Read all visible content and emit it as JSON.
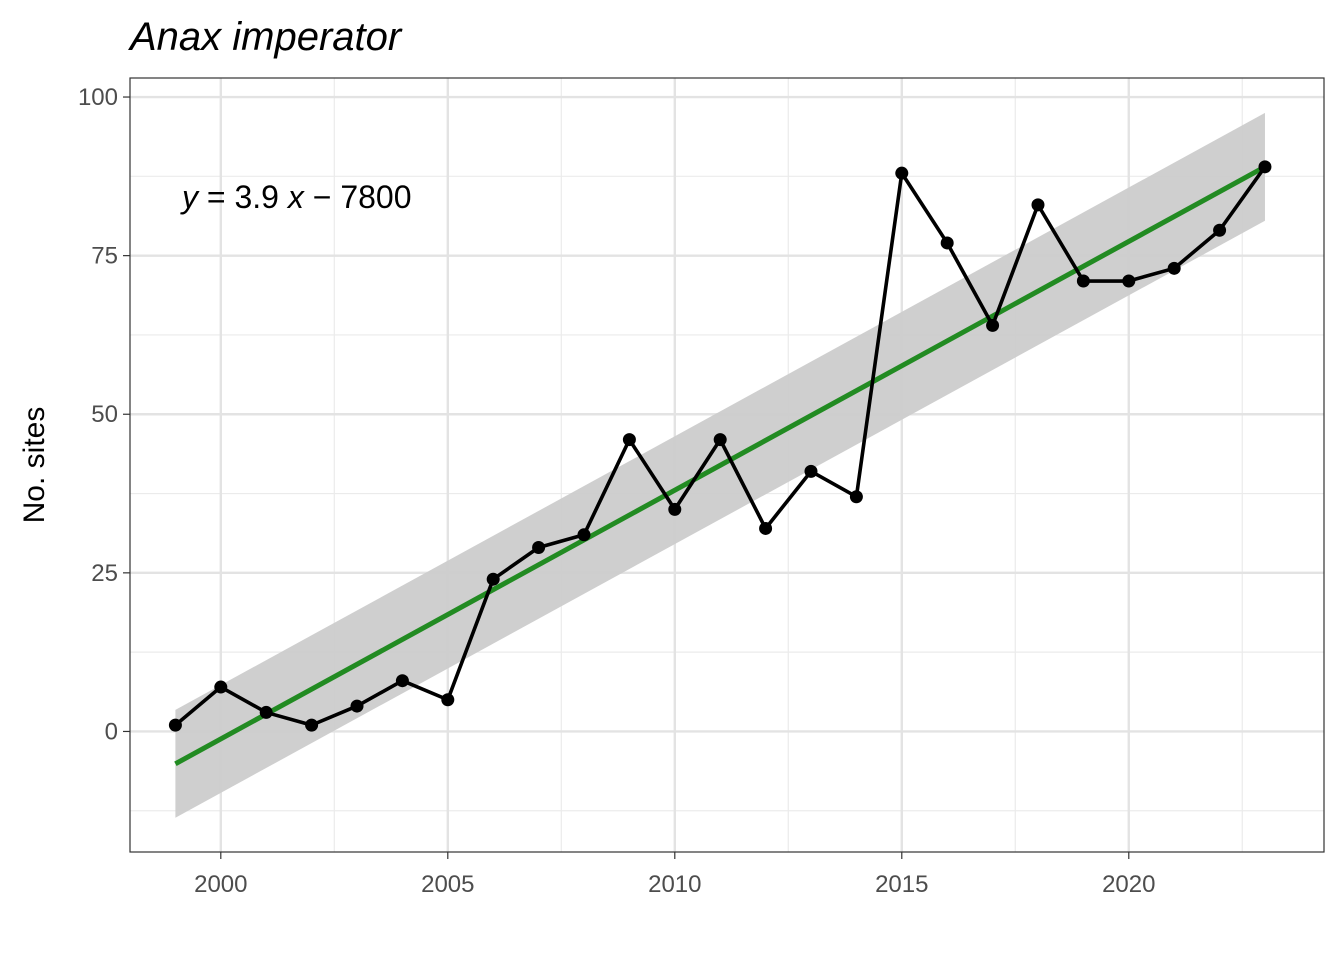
{
  "chart_data": {
    "type": "line",
    "title": "Anax imperator",
    "xlabel": "",
    "ylabel": "No. sites",
    "xlim": [
      1998.0,
      2024.3
    ],
    "ylim": [
      -19,
      103
    ],
    "x_ticks": [
      2000,
      2005,
      2010,
      2015,
      2020
    ],
    "y_ticks": [
      0,
      25,
      50,
      75,
      100
    ],
    "x_tick_labels": [
      "2000",
      "2005",
      "2010",
      "2015",
      "2020"
    ],
    "y_tick_labels": [
      "0",
      "25",
      "50",
      "75",
      "100"
    ],
    "grid": true,
    "annotation": {
      "y_var": "y",
      "equals": " = 3.9 ",
      "x_var": "x",
      "rest": " − 7800"
    },
    "series": [
      {
        "x": [
          1999,
          2000,
          2001,
          2002,
          2003,
          2004,
          2005,
          2006,
          2007,
          2008,
          2009,
          2010,
          2011,
          2012,
          2013,
          2014,
          2015,
          2016,
          2017,
          2018,
          2019,
          2020,
          2021,
          2022,
          2023
        ],
        "y": [
          1,
          7,
          3,
          1,
          4,
          8,
          5,
          24,
          29,
          31,
          46,
          35,
          46,
          32,
          41,
          37,
          88,
          77,
          64,
          83,
          71,
          71,
          73,
          79,
          89
        ],
        "color": "#000000"
      }
    ],
    "fit": {
      "type": "linear",
      "x": [
        1999,
        2023
      ],
      "y": [
        -5.1,
        89.0
      ],
      "ci_lower": [
        -13.6,
        80.5
      ],
      "ci_upper": [
        3.4,
        97.5
      ],
      "line_color": "#228b22",
      "band_color": "#cccccc"
    }
  }
}
